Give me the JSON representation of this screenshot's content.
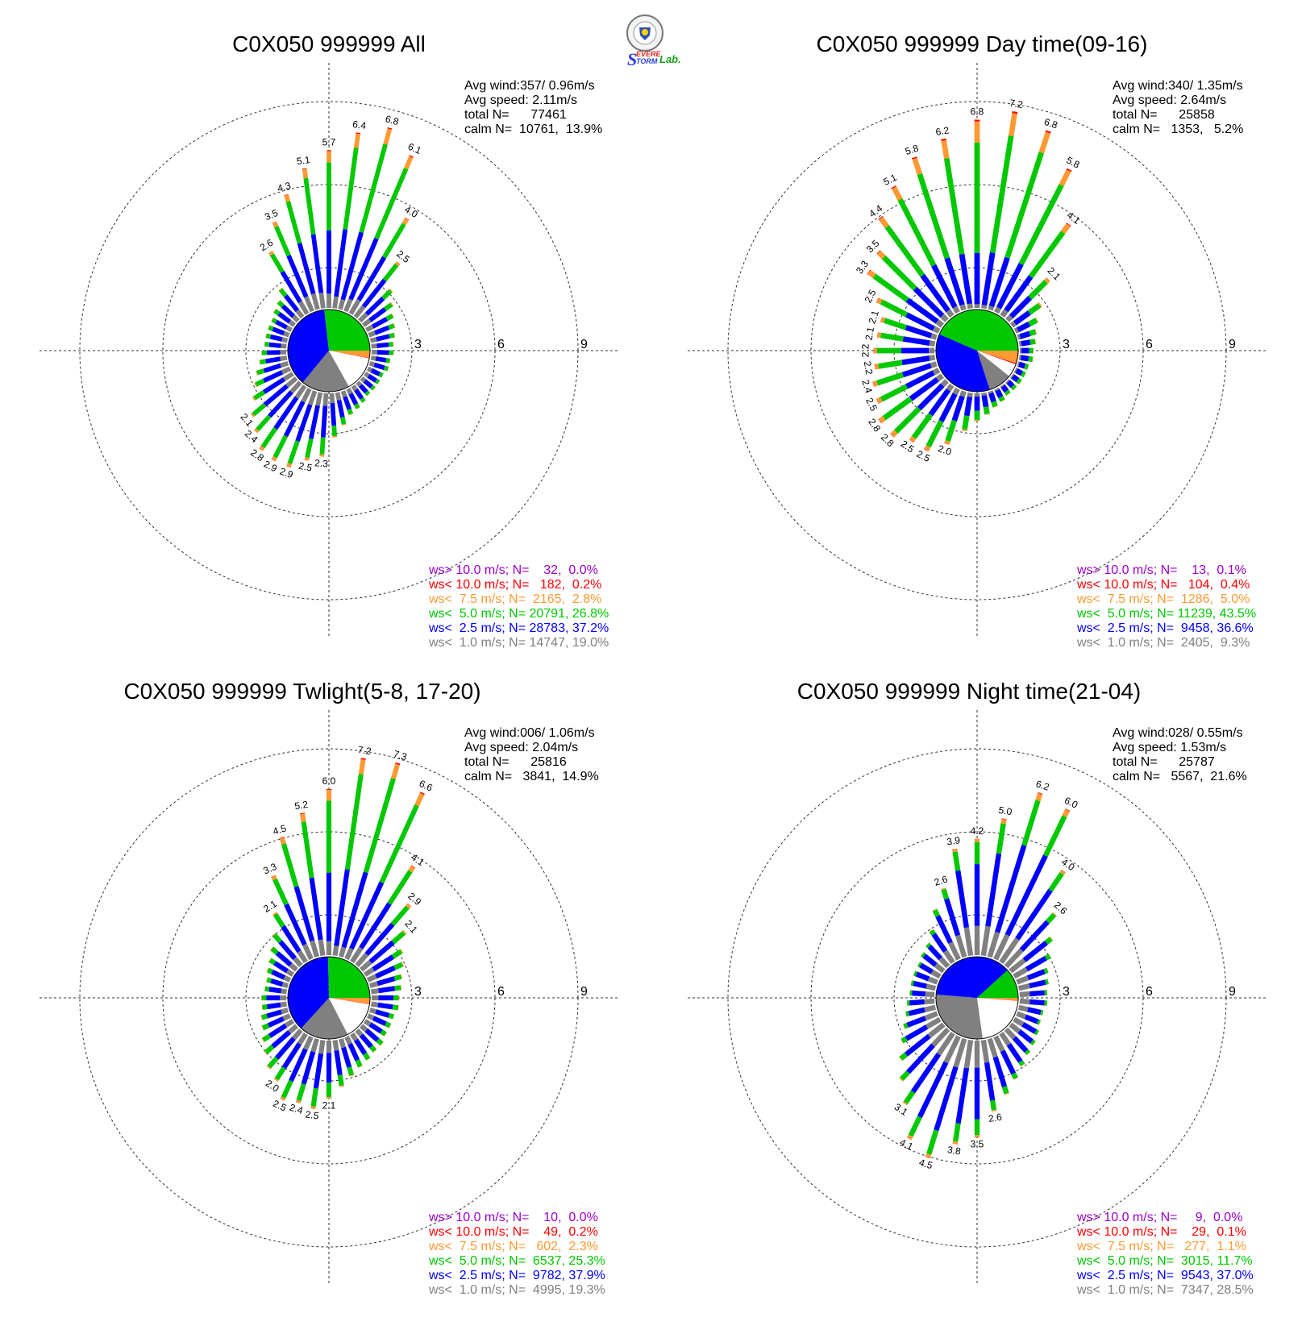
{
  "chart_data": [
    {
      "type": "wind-rose",
      "title": "C0X050 999999 All",
      "stats": {
        "avg_wind": "Avg wind:357/ 0.96m/s",
        "avg_speed": "Avg speed: 2.11m/s",
        "total": "total N=      77461",
        "calm": "calm N=  10761,  13.9%"
      },
      "radial_ticks": [
        "3",
        "6",
        "9"
      ],
      "bins": [
        {
          "label": "ws> 10.0 m/s; N=    32,  0.0%",
          "color": "#9b00c8"
        },
        {
          "label": "ws< 10.0 m/s; N=   182,  0.2%",
          "color": "#ff0000"
        },
        {
          "label": "ws<  7.5 m/s; N=  2165,  2.8%",
          "color": "#ff9933"
        },
        {
          "label": "ws<  5.0 m/s; N= 20791, 26.8%",
          "color": "#00c800"
        },
        {
          "label": "ws<  2.5 m/s; N= 28783, 37.2%",
          "color": "#0000ff"
        },
        {
          "label": "ws<  1.0 m/s; N= 14747, 19.0%",
          "color": "#808080"
        }
      ],
      "pie": [
        19.0,
        37.2,
        26.8,
        2.8,
        0.2,
        0.0,
        13.9
      ],
      "direction_totals": [
        5.7,
        6.4,
        6.8,
        6.1,
        4.0,
        2.5,
        1.6,
        1.3,
        1.1,
        1.0,
        0.9,
        0.8,
        0.8,
        0.7,
        0.7,
        0.6,
        0.6,
        0.6,
        0.6,
        0.7,
        0.8,
        0.9,
        1.2,
        1.6,
        2.3,
        2.5,
        2.9,
        2.9,
        2.8,
        2.4,
        2.1,
        1.7,
        1.4,
        1.2,
        1.0,
        0.9,
        0.8,
        0.8,
        0.8,
        0.8,
        0.9,
        1.0,
        1.3,
        2.6,
        3.5,
        4.3,
        5.1
      ],
      "labeled_bars": [
        0,
        1,
        2,
        3,
        4,
        5,
        24,
        25,
        26,
        27,
        28,
        29,
        30,
        43,
        44,
        45,
        46
      ]
    },
    {
      "type": "wind-rose",
      "title": "C0X050 999999 Day time(09-16)",
      "stats": {
        "avg_wind": "Avg wind:340/ 1.35m/s",
        "avg_speed": "Avg speed: 2.64m/s",
        "total": "total N=      25858",
        "calm": "calm N=   1353,   5.2%"
      },
      "radial_ticks": [
        "3",
        "6",
        "9"
      ],
      "bins": [
        {
          "label": "ws> 10.0 m/s; N=    13,  0.1%",
          "color": "#9b00c8"
        },
        {
          "label": "ws< 10.0 m/s; N=   104,  0.4%",
          "color": "#ff0000"
        },
        {
          "label": "ws<  7.5 m/s; N=  1286,  5.0%",
          "color": "#ff9933"
        },
        {
          "label": "ws<  5.0 m/s; N= 11239, 43.5%",
          "color": "#00c800"
        },
        {
          "label": "ws<  2.5 m/s; N=  9458, 36.6%",
          "color": "#0000ff"
        },
        {
          "label": "ws<  1.0 m/s; N=  2405,  9.3%",
          "color": "#808080"
        }
      ],
      "pie": [
        9.3,
        36.6,
        43.5,
        5.0,
        0.4,
        0.1,
        5.2
      ],
      "direction_totals": [
        6.8,
        7.2,
        6.8,
        5.8,
        4.1,
        2.1,
        1.3,
        0.9,
        0.7,
        0.6,
        0.5,
        0.5,
        0.4,
        0.4,
        0.4,
        0.4,
        0.4,
        0.5,
        0.6,
        0.8,
        1.0,
        1.4,
        2.0,
        2.5,
        2.5,
        2.8,
        2.8,
        2.5,
        2.4,
        2.2,
        2.2,
        2.1,
        2.1,
        2.5,
        3.3,
        3.5,
        4.4,
        5.1,
        5.8,
        6.2
      ],
      "labeled_bars": [
        0,
        1,
        2,
        3,
        4,
        5,
        22,
        23,
        24,
        25,
        26,
        27,
        28,
        29,
        30,
        31,
        32,
        33,
        34,
        35,
        36,
        37,
        38,
        39
      ]
    },
    {
      "type": "wind-rose",
      "title": "C0X050 999999 Twlight(5-8, 17-20)",
      "stats": {
        "avg_wind": "Avg wind:006/ 1.06m/s",
        "avg_speed": "Avg speed: 2.04m/s",
        "total": "total N=      25816",
        "calm": "calm N=   3841,  14.9%"
      },
      "radial_ticks": [
        "3",
        "6",
        "9"
      ],
      "bins": [
        {
          "label": "ws> 10.0 m/s; N=    10,  0.0%",
          "color": "#9b00c8"
        },
        {
          "label": "ws< 10.0 m/s; N=    49,  0.2%",
          "color": "#ff0000"
        },
        {
          "label": "ws<  7.5 m/s; N=   602,  2.3%",
          "color": "#ff9933"
        },
        {
          "label": "ws<  5.0 m/s; N=  6537, 25.3%",
          "color": "#00c800"
        },
        {
          "label": "ws<  2.5 m/s; N=  9782, 37.9%",
          "color": "#0000ff"
        },
        {
          "label": "ws<  1.0 m/s; N=  4995, 19.3%",
          "color": "#808080"
        }
      ],
      "pie": [
        19.3,
        37.9,
        25.3,
        2.3,
        0.2,
        0.0,
        14.9
      ],
      "direction_totals": [
        6.0,
        7.2,
        7.3,
        6.6,
        4.1,
        2.9,
        2.1,
        1.6,
        1.4,
        1.2,
        1.1,
        1.0,
        1.0,
        0.9,
        0.9,
        0.9,
        1.0,
        1.0,
        1.1,
        1.2,
        1.4,
        1.7,
        2.1,
        2.5,
        2.4,
        2.5,
        2.0,
        1.8,
        1.5,
        1.3,
        1.1,
        1.0,
        0.9,
        0.9,
        0.8,
        0.8,
        0.9,
        1.0,
        1.2,
        1.5,
        2.1,
        3.3,
        4.5,
        5.2
      ],
      "labeled_bars": [
        0,
        1,
        2,
        3,
        4,
        5,
        6,
        22,
        23,
        24,
        25,
        26,
        40,
        41,
        42,
        43
      ]
    },
    {
      "type": "wind-rose",
      "title": "C0X050 999999 Night time(21-04)",
      "stats": {
        "avg_wind": "Avg wind:028/ 0.55m/s",
        "avg_speed": "Avg speed: 1.53m/s",
        "total": "total N=      25787",
        "calm": "calm N=   5567,  21.6%"
      },
      "radial_ticks": [
        "3",
        "6",
        "9"
      ],
      "bins": [
        {
          "label": "ws> 10.0 m/s; N=     9,  0.0%",
          "color": "#9b00c8"
        },
        {
          "label": "ws< 10.0 m/s; N=    29,  0.1%",
          "color": "#ff0000"
        },
        {
          "label": "ws<  7.5 m/s; N=   277,  1.1%",
          "color": "#ff9933"
        },
        {
          "label": "ws<  5.0 m/s; N=  3015, 11.7%",
          "color": "#00c800"
        },
        {
          "label": "ws<  2.5 m/s; N=  9543, 37.0%",
          "color": "#0000ff"
        },
        {
          "label": "ws<  1.0 m/s; N=  7347, 28.5%",
          "color": "#808080"
        }
      ],
      "pie": [
        28.5,
        37.0,
        11.7,
        1.1,
        0.1,
        0.0,
        21.6
      ],
      "direction_totals": [
        4.2,
        5.0,
        6.2,
        6.0,
        4.0,
        2.6,
        1.9,
        1.5,
        1.2,
        1.1,
        1.0,
        1.0,
        0.9,
        0.9,
        1.0,
        1.1,
        1.2,
        1.4,
        1.7,
        2.1,
        2.6,
        3.5,
        3.8,
        4.5,
        4.1,
        3.1,
        2.5,
        2.0,
        1.6,
        1.3,
        1.1,
        1.0,
        0.9,
        0.9,
        0.9,
        0.9,
        1.0,
        1.1,
        1.4,
        2.0,
        2.6,
        3.9
      ],
      "labeled_bars": [
        0,
        1,
        2,
        3,
        4,
        5,
        20,
        21,
        22,
        23,
        24,
        25,
        40,
        41
      ]
    }
  ],
  "logo": {
    "line1": "EVERE",
    "line2": "TORM",
    "lab": "Lab.",
    "s_letter": "S"
  }
}
